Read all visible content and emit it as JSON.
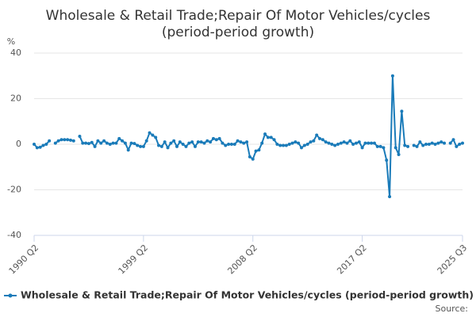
{
  "chart_data": {
    "type": "line",
    "title": [
      "Wholesale & Retail Trade;Repair Of Motor Vehicles/cycles",
      "(period-period growth)"
    ],
    "y_label": "%",
    "source": "Source:",
    "categories": [
      "1990 Q2",
      null,
      null,
      null,
      null,
      null,
      null,
      null,
      null,
      null,
      null,
      null,
      null,
      null,
      null,
      null,
      null,
      null,
      null,
      null,
      null,
      null,
      null,
      null,
      null,
      null,
      null,
      null,
      null,
      null,
      null,
      null,
      null,
      null,
      null,
      null,
      "1999 Q2",
      null,
      null,
      null,
      null,
      null,
      null,
      null,
      null,
      null,
      null,
      null,
      null,
      null,
      null,
      null,
      null,
      null,
      null,
      null,
      null,
      null,
      null,
      null,
      null,
      null,
      null,
      null,
      null,
      null,
      null,
      null,
      null,
      null,
      null,
      null,
      "2008 Q2",
      null,
      null,
      null,
      null,
      null,
      null,
      null,
      null,
      null,
      null,
      null,
      null,
      null,
      null,
      null,
      null,
      null,
      null,
      null,
      null,
      null,
      null,
      null,
      null,
      null,
      null,
      null,
      null,
      null,
      null,
      null,
      null,
      null,
      null,
      null,
      "2017 Q2",
      null,
      null,
      null,
      null,
      null,
      null,
      null,
      null,
      null,
      null,
      null,
      null,
      null,
      null,
      null,
      null,
      null,
      null,
      null,
      null,
      null,
      null,
      null,
      null,
      null,
      null,
      null,
      null,
      null,
      null,
      null,
      null,
      "2025 Q3"
    ],
    "series": [
      {
        "name": "Wholesale & Retail Trade;Repair Of Motor Vehicles/cycles (period-period growth)",
        "color": "#1a7bb9",
        "values": [
          0,
          -1.5,
          -1.3,
          -0.5,
          0,
          1.5,
          null,
          0.5,
          1.5,
          2,
          2,
          2,
          1.8,
          1.5,
          null,
          3.5,
          0.5,
          0.5,
          0.3,
          0.8,
          -1,
          1.5,
          0.5,
          1.5,
          0.5,
          0,
          0.5,
          0.5,
          2.5,
          1.5,
          0.5,
          -2.5,
          0.5,
          0.3,
          -0.5,
          -1,
          -1,
          1.5,
          5,
          4,
          3,
          -0.5,
          -1,
          1,
          -1.5,
          0.5,
          1.5,
          -1,
          1,
          0,
          -1,
          0.5,
          1,
          -1,
          1,
          1,
          0.5,
          1.5,
          1,
          2.5,
          2,
          2.5,
          0.5,
          -0.5,
          0,
          0,
          0,
          1.5,
          1,
          0.5,
          1,
          -5.5,
          -6.5,
          -3,
          -2.5,
          0.5,
          4.5,
          3,
          3,
          2,
          0,
          -0.5,
          -0.5,
          -0.5,
          0,
          0.5,
          1,
          0.5,
          -1.5,
          -0.5,
          0,
          1,
          1.5,
          4,
          2.5,
          2,
          1,
          0.5,
          0,
          -0.5,
          0,
          0.5,
          1,
          0.5,
          1.5,
          0,
          0.5,
          1,
          -1.5,
          0.5,
          0.5,
          0.5,
          0.5,
          -1,
          -1,
          -1.5,
          -7,
          -23,
          30,
          -1.5,
          -4.5,
          14.5,
          -0.5,
          -1,
          null,
          -0.5,
          -1,
          1,
          -0.5,
          0,
          0,
          0.5,
          0,
          0.5,
          1,
          0.5,
          null,
          0.5,
          2,
          -1,
          0,
          0.5
        ]
      }
    ],
    "ylim": [
      -40,
      40
    ],
    "yticks": [
      -40,
      -20,
      0,
      20,
      40
    ],
    "grid": true,
    "legend": "bottom"
  }
}
